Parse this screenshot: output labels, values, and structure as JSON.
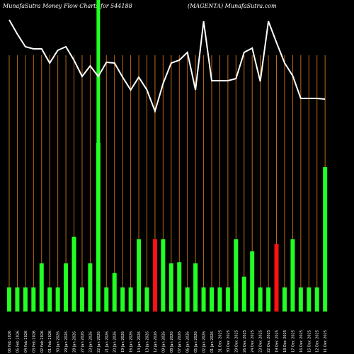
{
  "header": {
    "left": "MunafaSutra  Money Flow  Charts for 544188",
    "right": "(MAGENTA) MunafaSutra.com"
  },
  "chart_data": {
    "type": "bar",
    "title": "MunafaSutra  Money Flow  Charts for 544188",
    "subtitle": "(MAGENTA) MunafaSutra.com",
    "colors": {
      "up": "#22ff22",
      "down": "#ff1111",
      "grid": "#b86a1a",
      "line": "#ffffff",
      "background": "#000000",
      "highlight": "#22ff22"
    },
    "categories": [
      "06 Feb 2026",
      "05 Feb 2026",
      "04 Feb 2026",
      "03 Feb 2026",
      "02 Feb 2026",
      "01 Feb 2026",
      "30 Jan 2026",
      "29 Jan 2026",
      "28 Jan 2026",
      "27 Jan 2026",
      "23 Jan 2026",
      "22 Jan 2026",
      "21 Jan 2026",
      "20 Jan 2026",
      "19 Jan 2026",
      "16 Jan 2026",
      "14 Jan 2026",
      "13 Jan 2026",
      "12 Jan 2026",
      "09 Jan 2026",
      "08 Jan 2026",
      "07 Jan 2026",
      "06 Jan 2026",
      "05 Jan 2026",
      "02 Jan 2026",
      "01 Jan 2026",
      "31 Dec 2025",
      "30 Dec 2025",
      "29 Dec 2025",
      "26 Dec 2025",
      "24 Dec 2025",
      "23 Dec 2025",
      "22 Dec 2025",
      "19 Dec 2025",
      "18 Dec 2025",
      "17 Dec 2025",
      "16 Dec 2025",
      "15 Dec 2025",
      "12 Dec 2025",
      "11 Dec 2025"
    ],
    "volumes": [
      1,
      1,
      1,
      1,
      2,
      1,
      1,
      2,
      3.1,
      1,
      2,
      7,
      1,
      1.6,
      1,
      1,
      3,
      1,
      3,
      3,
      2,
      2.05,
      1,
      2,
      1,
      1,
      1,
      1,
      3,
      1.45,
      2.5,
      1,
      1,
      2.8,
      1,
      3,
      1,
      1,
      1,
      6
    ],
    "direction": [
      "up",
      "up",
      "up",
      "up",
      "up",
      "up",
      "up",
      "up",
      "up",
      "up",
      "up",
      "up",
      "up",
      "up",
      "up",
      "up",
      "up",
      "up",
      "down",
      "up",
      "up",
      "up",
      "up",
      "up",
      "up",
      "up",
      "up",
      "up",
      "up",
      "up",
      "up",
      "up",
      "up",
      "down",
      "up",
      "up",
      "up",
      "up",
      "up",
      "up"
    ],
    "price_line": [
      470,
      450,
      432,
      429,
      429,
      409,
      427,
      432,
      413,
      390,
      405,
      390,
      410,
      409,
      389,
      371,
      389,
      371,
      341,
      380,
      409,
      413,
      424,
      371,
      468,
      384,
      384,
      384,
      387,
      424,
      430,
      383,
      468,
      438,
      409,
      391,
      359,
      359,
      359,
      358
    ],
    "highlight_index": 11
  }
}
